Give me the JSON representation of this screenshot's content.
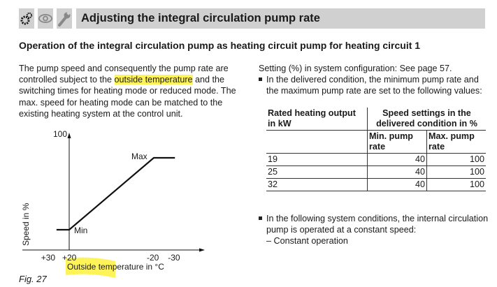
{
  "header": {
    "title": "Adjusting the integral circulation pump rate",
    "icons": [
      "gears-icon",
      "eye-icon",
      "wrench-icon"
    ]
  },
  "subtitle": "Operation of the integral circulation pump as heating circuit pump for heating circuit 1",
  "left_text": {
    "p1a": "The pump speed and consequently the pump rate are controlled subject to the ",
    "p1hl": "outside temperature",
    "p1b": " and the switching times for heating mode or reduced mode. The max. speed for heating mode can be matched to the existing heating system at the control unit."
  },
  "right_text": {
    "setting": "Setting (%) in system configuration: See page 57.",
    "bullet1": "In the delivered condition, the minimum pump rate and the maximum pump rate are set to the following values:",
    "bullet2": "In the following system conditions, the internal circulation pump is operated at a constant speed:",
    "dash1": "– Constant operation"
  },
  "table": {
    "h1": "Rated heating output in kW",
    "h2": "Speed settings in the delivered condition in %",
    "h_min": "Min. pump rate",
    "h_max": "Max. pump rate",
    "rows": [
      {
        "kw": "19",
        "min": "40",
        "max": "100"
      },
      {
        "kw": "25",
        "min": "40",
        "max": "100"
      },
      {
        "kw": "32",
        "min": "40",
        "max": "100"
      }
    ]
  },
  "chart_data": {
    "type": "line",
    "ylabel": "Speed in %",
    "xlabel": "Outside temperature in °C",
    "y_tick": "100",
    "x_ticks": [
      "+30",
      "+20",
      "-20",
      "-30"
    ],
    "x_tick_values": [
      30,
      20,
      -20,
      -30
    ],
    "xlim": [
      30,
      -30
    ],
    "ylim": [
      0,
      100
    ],
    "points": [
      [
        26,
        30
      ],
      [
        20,
        30
      ],
      [
        -20,
        80
      ],
      [
        -30,
        80
      ]
    ],
    "annotations": {
      "min": "Min",
      "max": "Max"
    }
  },
  "figure_caption": "Fig. 27",
  "colors": {
    "highlight": "#fff35a",
    "header_bg": "#d0d0d0"
  }
}
